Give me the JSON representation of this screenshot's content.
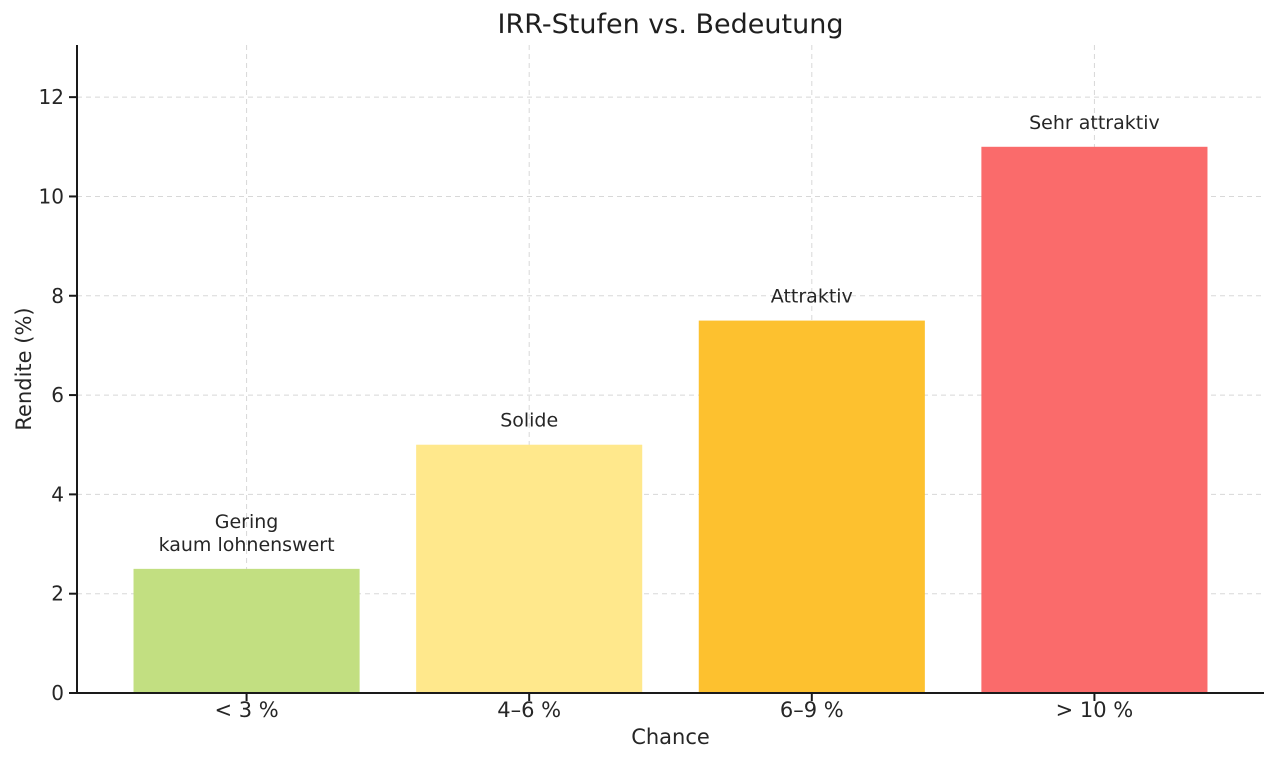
{
  "page": {
    "background_color": "#ffffff"
  },
  "chart_data": {
    "type": "bar",
    "title": "IRR-Stufen vs. Bedeutung",
    "xlabel": "Chance",
    "ylabel": "Rendite (%)",
    "categories": [
      "< 3 %",
      "4–6 %",
      "6–9 %",
      "> 10 %"
    ],
    "values": [
      2.5,
      5.0,
      7.5,
      11.0
    ],
    "bar_colors": [
      "#c2df81",
      "#ffe88c",
      "#fdc12f",
      "#fa6b6b"
    ],
    "bar_annotations": [
      [
        "Gering",
        "kaum lohnenswert"
      ],
      [
        "Solide"
      ],
      [
        "Attraktiv"
      ],
      [
        "Sehr attraktiv"
      ]
    ],
    "yticks": [
      0,
      2,
      4,
      6,
      8,
      10,
      12
    ],
    "ylim": [
      0,
      13.05
    ],
    "xlim": [
      -0.6,
      3.6
    ],
    "bar_width": 0.8,
    "grid": true,
    "grid_line_style": "dashed",
    "legend": "none",
    "colors": {
      "axis": "#1a1a1a",
      "grid": "#d8d8d8",
      "text": "#262626"
    }
  }
}
